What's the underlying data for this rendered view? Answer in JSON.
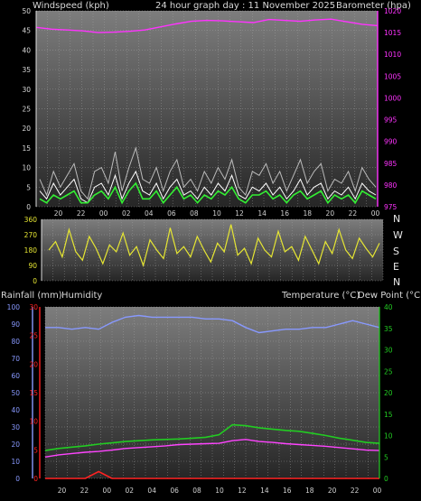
{
  "header": {
    "left_title": "Windspeed (kph)",
    "center_title": "24 hour graph day : 11 November 2025",
    "right_title": "Barometer (hpa)"
  },
  "lower_header": {
    "rainfall_label": "Rainfall (mm)",
    "humidity_label": "Humidity",
    "temperature_label": "Temperature (°C)",
    "dewpoint_label": "Dew Point (°C)"
  },
  "colors": {
    "windspeed": "#ffffff",
    "gust": "#bbbbbb",
    "avg_wind": "#33ee33",
    "barometer": "#ff33ff",
    "direction": "#e6e633",
    "humidity": "#8899ff",
    "temperature": "#22cc22",
    "dewpoint": "#ff44ff",
    "rainfall": "#ff2222",
    "rain_rate": "#e6e633"
  },
  "chart_data": [
    {
      "type": "line",
      "title": "24 hour graph day : 11 November 2025",
      "x_tick_labels": [
        "20",
        "22",
        "00",
        "02",
        "04",
        "06",
        "08",
        "10",
        "12",
        "14",
        "16",
        "18",
        "20",
        "22",
        "00"
      ],
      "left_axis": {
        "label": "Windspeed (kph)",
        "range": [
          0,
          50
        ],
        "ticks": [
          0,
          5,
          10,
          15,
          20,
          25,
          30,
          35,
          40,
          45,
          50
        ]
      },
      "right_axis": {
        "label": "Barometer (hpa)",
        "range": [
          975,
          1020
        ],
        "ticks": [
          975,
          980,
          985,
          990,
          995,
          1000,
          1005,
          1010,
          1015,
          1020
        ]
      },
      "series": [
        {
          "name": "Barometer (hpa)",
          "axis": "right",
          "values": [
            1016.2,
            1015.8,
            1015.6,
            1015.4,
            1015.0,
            1015.1,
            1015.3,
            1015.6,
            1016.3,
            1017.0,
            1017.6,
            1017.8,
            1017.7,
            1017.5,
            1017.3,
            1018.0,
            1017.8,
            1017.6,
            1017.9,
            1018.1,
            1017.5,
            1016.9,
            1016.6
          ]
        },
        {
          "axis": "left",
          "values": [
            4,
            2,
            6,
            3,
            5,
            7,
            2,
            1,
            5,
            6,
            3,
            8,
            2,
            6,
            9,
            4,
            3,
            6,
            2,
            5,
            7,
            3,
            4,
            2,
            5,
            3,
            6,
            4,
            8,
            3,
            2,
            5,
            4,
            6,
            3,
            5,
            2,
            4,
            7,
            3,
            5,
            6,
            2,
            4,
            3,
            5,
            2,
            6,
            4,
            3
          ]
        },
        {
          "axis": "left",
          "values": [
            7,
            3,
            9,
            5,
            8,
            11,
            4,
            2,
            9,
            10,
            6,
            14,
            4,
            10,
            15,
            7,
            6,
            10,
            4,
            9,
            12,
            5,
            7,
            4,
            9,
            6,
            10,
            7,
            12,
            5,
            3,
            9,
            8,
            11,
            6,
            9,
            4,
            8,
            12,
            6,
            9,
            11,
            4,
            7,
            6,
            9,
            4,
            10,
            7,
            5
          ]
        },
        {
          "axis": "left",
          "values": [
            2,
            1,
            3,
            2,
            3,
            4,
            1,
            1,
            3,
            4,
            2,
            5,
            1,
            4,
            6,
            2,
            2,
            4,
            1,
            3,
            5,
            2,
            3,
            1,
            3,
            2,
            4,
            3,
            5,
            2,
            1,
            3,
            3,
            4,
            2,
            3,
            1,
            3,
            4,
            2,
            3,
            4,
            1,
            3,
            2,
            3,
            1,
            4,
            3,
            2
          ]
        }
      ]
    },
    {
      "type": "line",
      "y_axis": {
        "range": [
          0,
          360
        ],
        "ticks": [
          0,
          90,
          180,
          270,
          360
        ]
      },
      "compass_labels": [
        "N",
        "W",
        "S",
        "E",
        "N"
      ],
      "series": [
        {
          "name": "Wind direction",
          "values": [
            180,
            230,
            140,
            300,
            170,
            120,
            260,
            190,
            100,
            210,
            170,
            280,
            150,
            200,
            90,
            240,
            180,
            130,
            310,
            160,
            200,
            140,
            260,
            180,
            110,
            220,
            170,
            330,
            150,
            190,
            100,
            250,
            180,
            140,
            290,
            170,
            200,
            120,
            260,
            180,
            100,
            230,
            160,
            300,
            180,
            130,
            250,
            190,
            140,
            220
          ]
        }
      ]
    },
    {
      "type": "line",
      "left_axis_humidity": {
        "label": "Humidity",
        "range": [
          0,
          100
        ],
        "ticks": [
          0,
          10,
          20,
          30,
          40,
          50,
          60,
          70,
          80,
          90,
          100
        ]
      },
      "left_axis_rainfall": {
        "label": "Rainfall (mm)",
        "range": [
          0,
          30
        ],
        "ticks": [
          0,
          5,
          10,
          15,
          20,
          25,
          30
        ]
      },
      "right_axis": {
        "label": "Temperature (°C)",
        "range": [
          0,
          40
        ],
        "ticks": [
          0,
          5,
          10,
          15,
          20,
          25,
          30,
          35,
          40
        ]
      },
      "x_tick_labels": [
        "20",
        "22",
        "00",
        "02",
        "04",
        "06",
        "08",
        "10",
        "12",
        "14",
        "16",
        "18",
        "20",
        "22",
        "00"
      ],
      "series": [
        {
          "name": "Humidity",
          "axis": "humidity",
          "values": [
            88,
            88,
            87,
            88,
            87,
            91,
            94,
            95,
            94,
            94,
            94,
            94,
            93,
            93,
            92,
            88,
            85,
            86,
            87,
            87,
            88,
            88,
            90,
            92,
            90,
            88
          ]
        },
        {
          "name": "Temperature (°C)",
          "axis": "right",
          "values": [
            6.5,
            7.0,
            7.3,
            7.6,
            8.0,
            8.3,
            8.6,
            8.8,
            9.0,
            9.1,
            9.2,
            9.4,
            9.6,
            10.2,
            12.5,
            12.3,
            11.8,
            11.5,
            11.2,
            11.0,
            10.5,
            10.0,
            9.4,
            8.9,
            8.4,
            8.2
          ]
        },
        {
          "name": "Dew Point (°C)",
          "axis": "right",
          "values": [
            5.0,
            5.5,
            5.8,
            6.1,
            6.3,
            6.6,
            7.0,
            7.2,
            7.4,
            7.6,
            7.9,
            8.0,
            8.1,
            8.2,
            8.8,
            9.1,
            8.6,
            8.4,
            8.1,
            7.9,
            7.7,
            7.5,
            7.2,
            6.9,
            6.6,
            6.5
          ]
        },
        {
          "name": "Rainfall (mm)",
          "axis": "rainfall",
          "values": [
            0,
            0,
            0,
            0,
            1.2,
            0,
            0,
            0,
            0,
            0,
            0,
            0,
            0,
            0,
            0,
            0,
            0,
            0,
            0,
            0,
            0,
            0,
            0,
            0,
            0,
            0
          ]
        }
      ]
    }
  ]
}
